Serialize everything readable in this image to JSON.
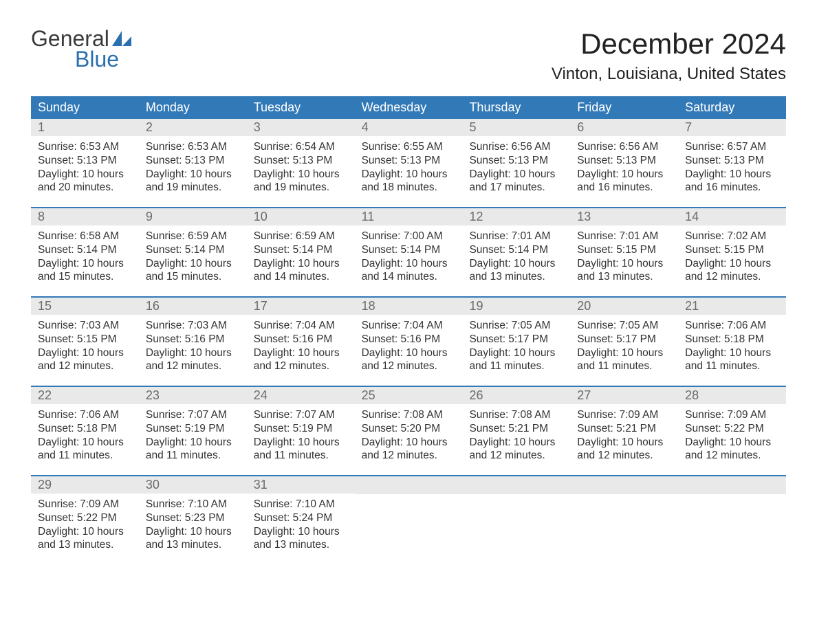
{
  "logo": {
    "word1": "General",
    "word2": "Blue",
    "icon_fill": "#2a6fb0"
  },
  "title": "December 2024",
  "location": "Vinton, Louisiana, United States",
  "colors": {
    "header_bg": "#3279b7",
    "header_text": "#ffffff",
    "daynum_bg": "#e9e9e9",
    "daynum_text": "#6a6a6a",
    "row_border": "#3279b7",
    "body_text": "#333333",
    "background": "#ffffff"
  },
  "weekdays": [
    "Sunday",
    "Monday",
    "Tuesday",
    "Wednesday",
    "Thursday",
    "Friday",
    "Saturday"
  ],
  "labels": {
    "sunrise": "Sunrise:",
    "sunset": "Sunset:",
    "daylight": "Daylight:"
  },
  "weeks": [
    [
      {
        "day": "1",
        "sunrise": "6:53 AM",
        "sunset": "5:13 PM",
        "daylight_l1": "10 hours",
        "daylight_l2": "and 20 minutes."
      },
      {
        "day": "2",
        "sunrise": "6:53 AM",
        "sunset": "5:13 PM",
        "daylight_l1": "10 hours",
        "daylight_l2": "and 19 minutes."
      },
      {
        "day": "3",
        "sunrise": "6:54 AM",
        "sunset": "5:13 PM",
        "daylight_l1": "10 hours",
        "daylight_l2": "and 19 minutes."
      },
      {
        "day": "4",
        "sunrise": "6:55 AM",
        "sunset": "5:13 PM",
        "daylight_l1": "10 hours",
        "daylight_l2": "and 18 minutes."
      },
      {
        "day": "5",
        "sunrise": "6:56 AM",
        "sunset": "5:13 PM",
        "daylight_l1": "10 hours",
        "daylight_l2": "and 17 minutes."
      },
      {
        "day": "6",
        "sunrise": "6:56 AM",
        "sunset": "5:13 PM",
        "daylight_l1": "10 hours",
        "daylight_l2": "and 16 minutes."
      },
      {
        "day": "7",
        "sunrise": "6:57 AM",
        "sunset": "5:13 PM",
        "daylight_l1": "10 hours",
        "daylight_l2": "and 16 minutes."
      }
    ],
    [
      {
        "day": "8",
        "sunrise": "6:58 AM",
        "sunset": "5:14 PM",
        "daylight_l1": "10 hours",
        "daylight_l2": "and 15 minutes."
      },
      {
        "day": "9",
        "sunrise": "6:59 AM",
        "sunset": "5:14 PM",
        "daylight_l1": "10 hours",
        "daylight_l2": "and 15 minutes."
      },
      {
        "day": "10",
        "sunrise": "6:59 AM",
        "sunset": "5:14 PM",
        "daylight_l1": "10 hours",
        "daylight_l2": "and 14 minutes."
      },
      {
        "day": "11",
        "sunrise": "7:00 AM",
        "sunset": "5:14 PM",
        "daylight_l1": "10 hours",
        "daylight_l2": "and 14 minutes."
      },
      {
        "day": "12",
        "sunrise": "7:01 AM",
        "sunset": "5:14 PM",
        "daylight_l1": "10 hours",
        "daylight_l2": "and 13 minutes."
      },
      {
        "day": "13",
        "sunrise": "7:01 AM",
        "sunset": "5:15 PM",
        "daylight_l1": "10 hours",
        "daylight_l2": "and 13 minutes."
      },
      {
        "day": "14",
        "sunrise": "7:02 AM",
        "sunset": "5:15 PM",
        "daylight_l1": "10 hours",
        "daylight_l2": "and 12 minutes."
      }
    ],
    [
      {
        "day": "15",
        "sunrise": "7:03 AM",
        "sunset": "5:15 PM",
        "daylight_l1": "10 hours",
        "daylight_l2": "and 12 minutes."
      },
      {
        "day": "16",
        "sunrise": "7:03 AM",
        "sunset": "5:16 PM",
        "daylight_l1": "10 hours",
        "daylight_l2": "and 12 minutes."
      },
      {
        "day": "17",
        "sunrise": "7:04 AM",
        "sunset": "5:16 PM",
        "daylight_l1": "10 hours",
        "daylight_l2": "and 12 minutes."
      },
      {
        "day": "18",
        "sunrise": "7:04 AM",
        "sunset": "5:16 PM",
        "daylight_l1": "10 hours",
        "daylight_l2": "and 12 minutes."
      },
      {
        "day": "19",
        "sunrise": "7:05 AM",
        "sunset": "5:17 PM",
        "daylight_l1": "10 hours",
        "daylight_l2": "and 11 minutes."
      },
      {
        "day": "20",
        "sunrise": "7:05 AM",
        "sunset": "5:17 PM",
        "daylight_l1": "10 hours",
        "daylight_l2": "and 11 minutes."
      },
      {
        "day": "21",
        "sunrise": "7:06 AM",
        "sunset": "5:18 PM",
        "daylight_l1": "10 hours",
        "daylight_l2": "and 11 minutes."
      }
    ],
    [
      {
        "day": "22",
        "sunrise": "7:06 AM",
        "sunset": "5:18 PM",
        "daylight_l1": "10 hours",
        "daylight_l2": "and 11 minutes."
      },
      {
        "day": "23",
        "sunrise": "7:07 AM",
        "sunset": "5:19 PM",
        "daylight_l1": "10 hours",
        "daylight_l2": "and 11 minutes."
      },
      {
        "day": "24",
        "sunrise": "7:07 AM",
        "sunset": "5:19 PM",
        "daylight_l1": "10 hours",
        "daylight_l2": "and 11 minutes."
      },
      {
        "day": "25",
        "sunrise": "7:08 AM",
        "sunset": "5:20 PM",
        "daylight_l1": "10 hours",
        "daylight_l2": "and 12 minutes."
      },
      {
        "day": "26",
        "sunrise": "7:08 AM",
        "sunset": "5:21 PM",
        "daylight_l1": "10 hours",
        "daylight_l2": "and 12 minutes."
      },
      {
        "day": "27",
        "sunrise": "7:09 AM",
        "sunset": "5:21 PM",
        "daylight_l1": "10 hours",
        "daylight_l2": "and 12 minutes."
      },
      {
        "day": "28",
        "sunrise": "7:09 AM",
        "sunset": "5:22 PM",
        "daylight_l1": "10 hours",
        "daylight_l2": "and 12 minutes."
      }
    ],
    [
      {
        "day": "29",
        "sunrise": "7:09 AM",
        "sunset": "5:22 PM",
        "daylight_l1": "10 hours",
        "daylight_l2": "and 13 minutes."
      },
      {
        "day": "30",
        "sunrise": "7:10 AM",
        "sunset": "5:23 PM",
        "daylight_l1": "10 hours",
        "daylight_l2": "and 13 minutes."
      },
      {
        "day": "31",
        "sunrise": "7:10 AM",
        "sunset": "5:24 PM",
        "daylight_l1": "10 hours",
        "daylight_l2": "and 13 minutes."
      },
      null,
      null,
      null,
      null
    ]
  ]
}
